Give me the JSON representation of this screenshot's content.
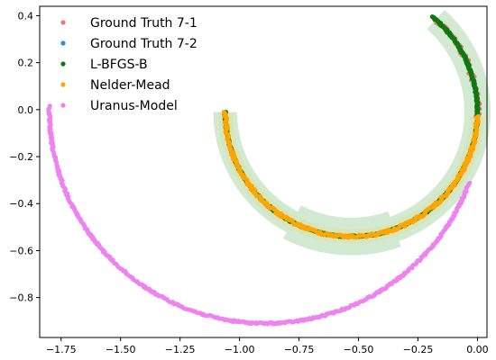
{
  "chart_data": {
    "type": "scatter",
    "xlim": [
      -1.84,
      0.04
    ],
    "ylim": [
      -0.97,
      0.44
    ],
    "grid": false,
    "legend": {
      "placement": "top-left"
    },
    "x_ticks": [
      {
        "value": -1.75,
        "label": "−1.75"
      },
      {
        "value": -1.5,
        "label": "−1.50"
      },
      {
        "value": -1.25,
        "label": "−1.25"
      },
      {
        "value": -1.0,
        "label": "−1.00"
      },
      {
        "value": -0.75,
        "label": "−0.75"
      },
      {
        "value": -0.5,
        "label": "−0.50"
      },
      {
        "value": -0.25,
        "label": "−0.25"
      },
      {
        "value": 0.0,
        "label": "0.00"
      }
    ],
    "y_ticks": [
      {
        "value": 0.4,
        "label": "0.4"
      },
      {
        "value": 0.2,
        "label": "0.2"
      },
      {
        "value": 0.0,
        "label": "0.0"
      },
      {
        "value": -0.2,
        "label": "−0.2"
      },
      {
        "value": -0.4,
        "label": "−0.4"
      },
      {
        "value": -0.6,
        "label": "−0.6"
      },
      {
        "value": -0.8,
        "label": "−0.8"
      }
    ],
    "bands": [
      {
        "color": "#2ca02c",
        "opacity": 0.22,
        "center": [
          -0.53,
          -0.01
        ],
        "radius": 0.53,
        "half_width": 0.05,
        "theta_range_deg": [
          0,
          62
        ]
      },
      {
        "color": "#2ca02c",
        "opacity": 0.22,
        "center": [
          -0.53,
          -0.01
        ],
        "radius": 0.53,
        "half_width": 0.08,
        "theta_range_deg": [
          62,
          110
        ]
      },
      {
        "color": "#2ca02c",
        "opacity": 0.22,
        "center": [
          -0.53,
          -0.01
        ],
        "radius": 0.53,
        "half_width": 0.055,
        "theta_range_deg": [
          110,
          228
        ]
      },
      {
        "color": "#ffd24a",
        "opacity": 0.18,
        "center": [
          -0.53,
          -0.01
        ],
        "radius": 0.53,
        "half_width": 0.03,
        "theta_range_deg": [
          0,
          178
        ]
      }
    ],
    "series": [
      {
        "name": "Ground Truth 7-1",
        "color": "#e8777d",
        "marker_size": 2.2,
        "segments": [
          {
            "center": [
              -0.53,
              -0.01
            ],
            "radius": 0.53,
            "theta_range_deg": [
              0,
              172
            ],
            "points": 220
          },
          {
            "center": [
              -0.53,
              -0.01
            ],
            "radius": 0.53,
            "theta_range_deg": [
              178,
              228
            ],
            "points": 45,
            "jitter": 0.012
          }
        ]
      },
      {
        "name": "Ground Truth 7-2",
        "color": "#2a8fdd",
        "marker_size": 2.2,
        "segments": [
          {
            "center": [
              -0.53,
              -0.01
            ],
            "radius": 0.53,
            "theta_range_deg": [
              0,
              172
            ],
            "points": 200
          },
          {
            "center": [
              -0.53,
              -0.01
            ],
            "radius": 0.53,
            "theta_range_deg": [
              176,
              228
            ],
            "points": 40
          }
        ]
      },
      {
        "name": "L-BFGS-B",
        "color": "#0d7a0d",
        "marker_size": 2.6,
        "segments": [
          {
            "center": [
              -0.53,
              -0.01
            ],
            "radius": 0.53,
            "theta_range_deg": [
              0,
              176
            ],
            "points": 320
          },
          {
            "center": [
              -0.53,
              -0.01
            ],
            "radius": 0.53,
            "theta_range_deg": [
              178,
              230
            ],
            "points": 140
          }
        ]
      },
      {
        "name": "Nelder-Mead",
        "color": "#ffa500",
        "marker_size": 2.6,
        "segments": [
          {
            "center": [
              -0.53,
              -0.01
            ],
            "radius": 0.53,
            "theta_range_deg": [
              0,
              178
            ],
            "points": 260,
            "jitter": 0.006
          }
        ]
      },
      {
        "name": "Uranus-Model",
        "color": "#ee82ee",
        "marker_size": 2.4,
        "segments": [
          {
            "center": [
              -0.89,
              0.0
            ],
            "radius": 0.91,
            "theta_range_deg": [
              -1,
              160
            ],
            "points": 520,
            "jitter": 0.004
          }
        ]
      }
    ]
  }
}
